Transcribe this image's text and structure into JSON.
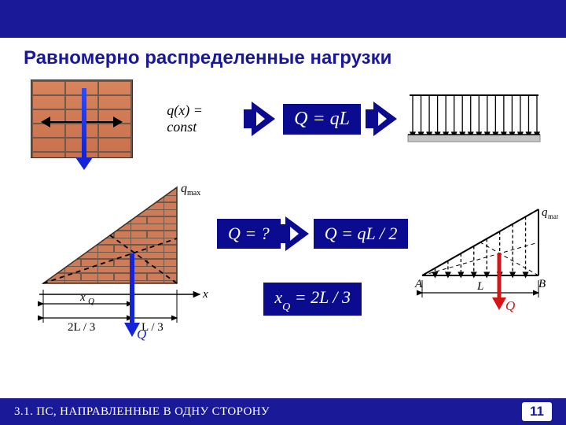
{
  "colors": {
    "navy": "#0b0b8f",
    "brand": "#1a1a99",
    "brick": "#cf7b57",
    "mortar": "#6e5a4d",
    "force_blue": "#1325d6",
    "force_red": "#d31515"
  },
  "title": "Равномерно распределенные нагрузки",
  "row1": {
    "formula_plain": "q(x) = const",
    "formula_box": "Q = qL"
  },
  "uniform_diagram": {
    "width": 175,
    "height": 70,
    "n_arrows": 16,
    "arrow_color": "#000000",
    "bar_color": "#b9b9b9"
  },
  "row2": {
    "q_label": "qₘₐₓ",
    "axis_x": "x",
    "xQ": "xQ",
    "seg_left": "2L / 3",
    "seg_right": "L / 3",
    "Q_label": "Q",
    "formula_Q_unknown": "Q = ?",
    "formula_Q": "Q = qL / 2",
    "formula_xQ": "xQ = 2L / 3"
  },
  "tri_schematic": {
    "A": "A",
    "B": "B",
    "L": "L",
    "qmax": "qₘₐₓ",
    "Q": "Q",
    "n_arrows": 8
  },
  "footer": {
    "section": "3.1. ПС, НАПРАВЛЕННЫЕ В ОДНУ СТОРОНУ",
    "page": "11"
  }
}
